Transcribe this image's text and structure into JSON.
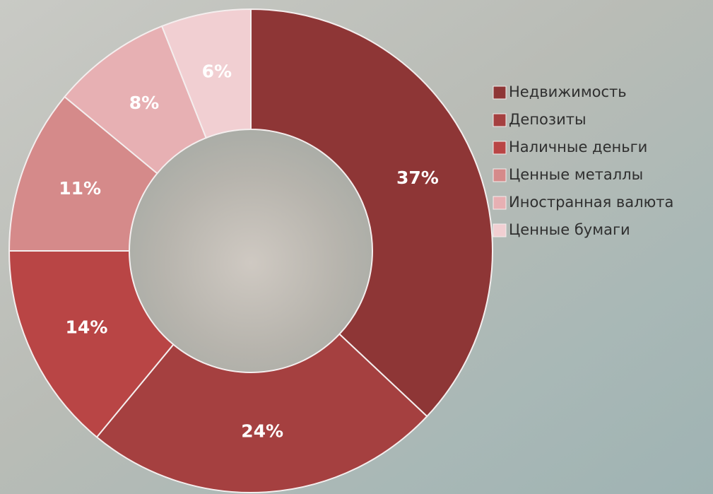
{
  "chart_data": {
    "type": "donut",
    "categories": [
      "Недвижимость",
      "Депозиты",
      "Наличные деньги",
      "Ценные металлы",
      "Иностранная валюта",
      "Ценные бумаги"
    ],
    "values": [
      37,
      24,
      14,
      11,
      8,
      6
    ],
    "value_labels": [
      "37%",
      "24%",
      "14%",
      "11%",
      "8%",
      "6%"
    ],
    "colors": [
      "#8e3636",
      "#a54040",
      "#b94545",
      "#d58a8a",
      "#e7b0b3",
      "#f1cfd2"
    ],
    "legend": "right"
  }
}
